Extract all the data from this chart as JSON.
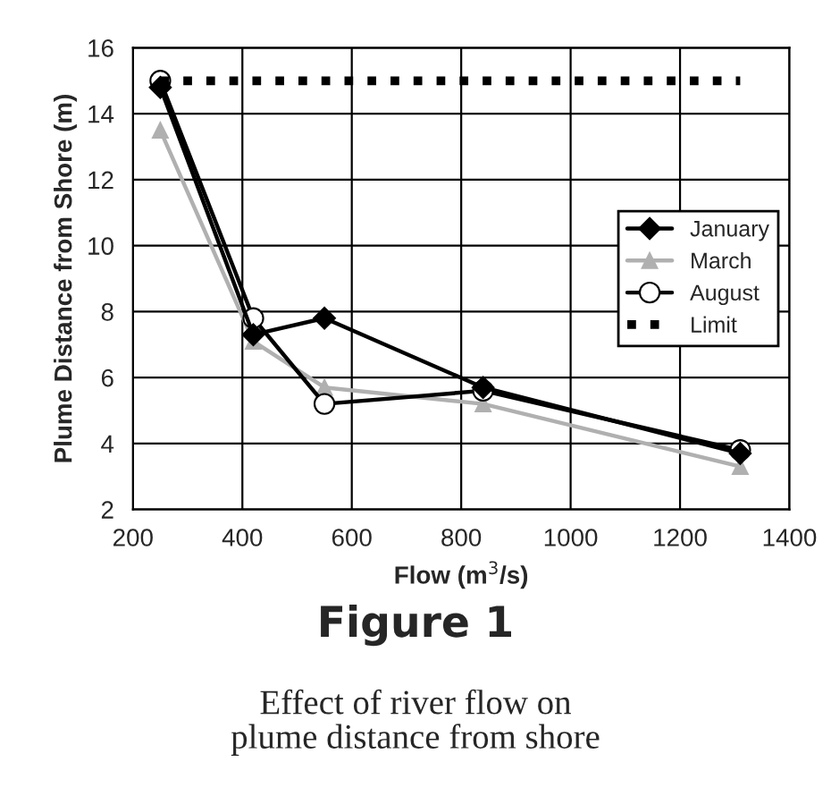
{
  "chart_data": {
    "type": "line",
    "title": "Figure 1",
    "subtitle": "Effect of river flow on\nplume distance from shore",
    "xlabel": "Flow (m$^{3}$/s)",
    "ylabel": "Plume Distance from Shore (m)",
    "xlim": [
      200,
      1400
    ],
    "xticks": [
      200,
      400,
      600,
      800,
      1000,
      1200,
      1400
    ],
    "ylim": [
      2,
      16
    ],
    "yticks": [
      2,
      4,
      6,
      8,
      10,
      12,
      14,
      16
    ],
    "grid": true,
    "legend": "right",
    "series": [
      {
        "name": "January",
        "color": "#000000",
        "marker": "diamond",
        "x": [
          250,
          420,
          550,
          840,
          1310
        ],
        "values": [
          14.8,
          7.3,
          7.8,
          5.7,
          3.7
        ]
      },
      {
        "name": "March",
        "color": "#b0b0b0",
        "marker": "triangle",
        "x": [
          250,
          420,
          550,
          840,
          1310
        ],
        "values": [
          13.5,
          7.1,
          5.7,
          5.2,
          3.3
        ]
      },
      {
        "name": "August",
        "color": "#000000",
        "marker": "circle",
        "x": [
          250,
          420,
          550,
          840,
          1310
        ],
        "values": [
          15.0,
          7.8,
          5.2,
          5.6,
          3.8
        ]
      },
      {
        "name": "Limit",
        "color": "#000000",
        "marker": "none",
        "line_style": "dotted",
        "x": [
          250,
          1310
        ],
        "values": [
          15,
          15
        ]
      }
    ]
  }
}
